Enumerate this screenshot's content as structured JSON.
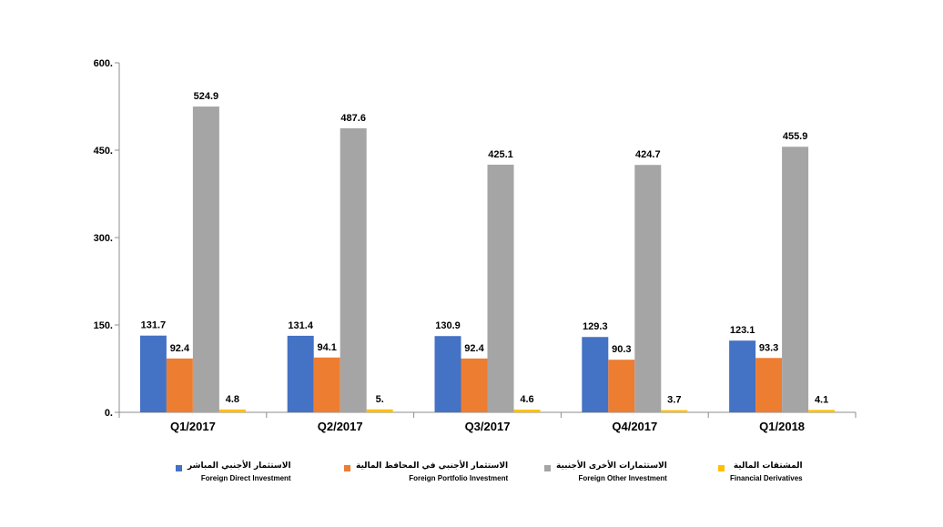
{
  "chart_data": {
    "type": "bar",
    "title": "",
    "xlabel": "",
    "ylabel": "",
    "ylim": [
      0,
      600
    ],
    "yticks": [
      0,
      150,
      300,
      450,
      600
    ],
    "ytick_labels": [
      "0.",
      "150.",
      "300.",
      "450.",
      "600."
    ],
    "categories": [
      "Q1/2017",
      "Q2/2017",
      "Q3/2017",
      "Q4/2017",
      "Q1/2018"
    ],
    "grid": false,
    "legend_position": "bottom",
    "series": [
      {
        "name": "Foreign Direct Investment",
        "name_ar": "الاستثمار الأجنبي المباشر",
        "color": "#4472C4",
        "values": [
          131.7,
          131.4,
          130.9,
          129.3,
          123.1
        ],
        "labels": [
          "131.7",
          "131.4",
          "130.9",
          "129.3",
          "123.1"
        ]
      },
      {
        "name": "Foreign Portfolio Investment",
        "name_ar": "الاستثمار الأجنبي في المحافظ المالية",
        "color": "#ED7D31",
        "values": [
          92.4,
          94.1,
          92.4,
          90.3,
          93.3
        ],
        "labels": [
          "92.4",
          "94.1",
          "92.4",
          "90.3",
          "93.3"
        ]
      },
      {
        "name": "Foreign Other Investment",
        "name_ar": "الاستثمارات الأخرى الأجنبية",
        "color": "#A5A5A5",
        "values": [
          524.9,
          487.6,
          425.1,
          424.7,
          455.9
        ],
        "labels": [
          "524.9",
          "487.6",
          "425.1",
          "424.7",
          "455.9"
        ]
      },
      {
        "name": "Financial Derivatives",
        "name_ar": "المشتقات المالية",
        "color": "#FFC000",
        "values": [
          4.8,
          5.0,
          4.6,
          3.7,
          4.1
        ],
        "labels": [
          "4.8",
          "5.",
          "4.6",
          "3.7",
          "4.1"
        ]
      }
    ]
  }
}
